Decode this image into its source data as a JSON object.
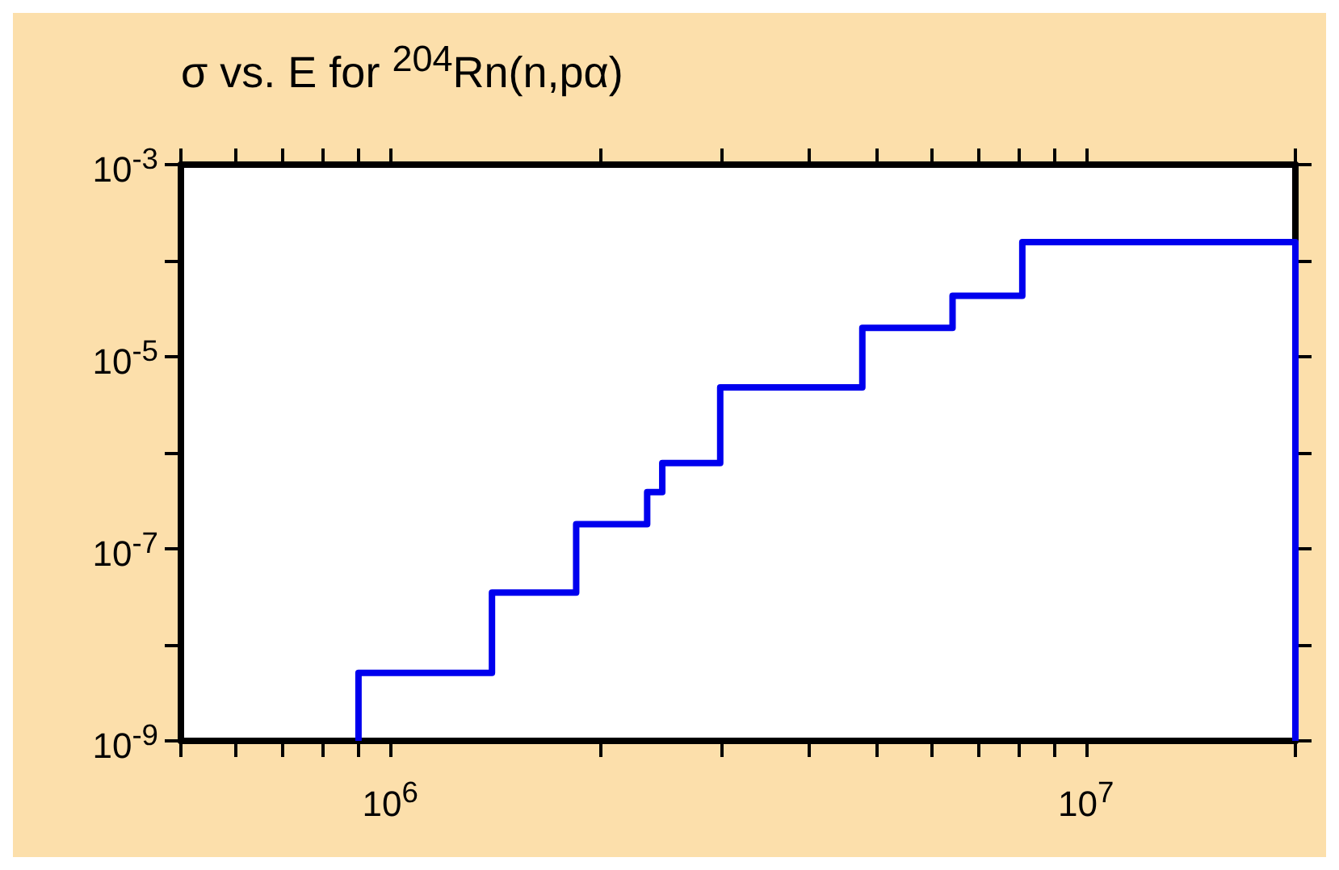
{
  "chart_data": {
    "type": "step",
    "title": "σ vs. E for $^{204}$Rn(n,pα)",
    "log": "xy",
    "grid": false,
    "marker": "none",
    "line_style": "solid",
    "x": [
      900000,
      900000,
      1400000,
      1850000,
      2340000,
      2460000,
      2980000,
      4770000,
      6430000,
      8100000,
      20000000,
      20000000
    ],
    "series": [
      {
        "color": "#0000ee",
        "values": [
          1e-09,
          5.1e-09,
          3.5e-08,
          1.8e-07,
          3.9e-07,
          7.8e-07,
          4.8e-06,
          2e-05,
          4.3e-05,
          0.000156,
          0.000156,
          1e-09
        ]
      }
    ],
    "xlim": [
      500000,
      20000000
    ],
    "xticks": [
      {
        "value": 500000,
        "label": null
      },
      {
        "value": 600000,
        "label": null
      },
      {
        "value": 700000,
        "label": null
      },
      {
        "value": 800000,
        "label": null
      },
      {
        "value": 900000,
        "label": null
      },
      {
        "value": 1000000,
        "label": "10$^{6}$"
      },
      {
        "value": 2000000,
        "label": null
      },
      {
        "value": 3000000,
        "label": null
      },
      {
        "value": 4000000,
        "label": null
      },
      {
        "value": 5000000,
        "label": null
      },
      {
        "value": 6000000,
        "label": null
      },
      {
        "value": 7000000,
        "label": null
      },
      {
        "value": 8000000,
        "label": null
      },
      {
        "value": 9000000,
        "label": null
      },
      {
        "value": 10000000,
        "label": "10$^{7}$"
      },
      {
        "value": 20000000,
        "label": null
      }
    ],
    "ylim": [
      1e-09,
      0.001
    ],
    "yticks": [
      {
        "value": 1e-09,
        "label": "10$^{-9}$"
      },
      {
        "value": 1e-08,
        "label": null
      },
      {
        "value": 1e-07,
        "label": "10$^{-7}$"
      },
      {
        "value": 1e-06,
        "label": null
      },
      {
        "value": 1e-05,
        "label": "10$^{-5}$"
      },
      {
        "value": 0.0001,
        "label": null
      },
      {
        "value": 0.001,
        "label": "10$^{-3}$"
      }
    ]
  }
}
